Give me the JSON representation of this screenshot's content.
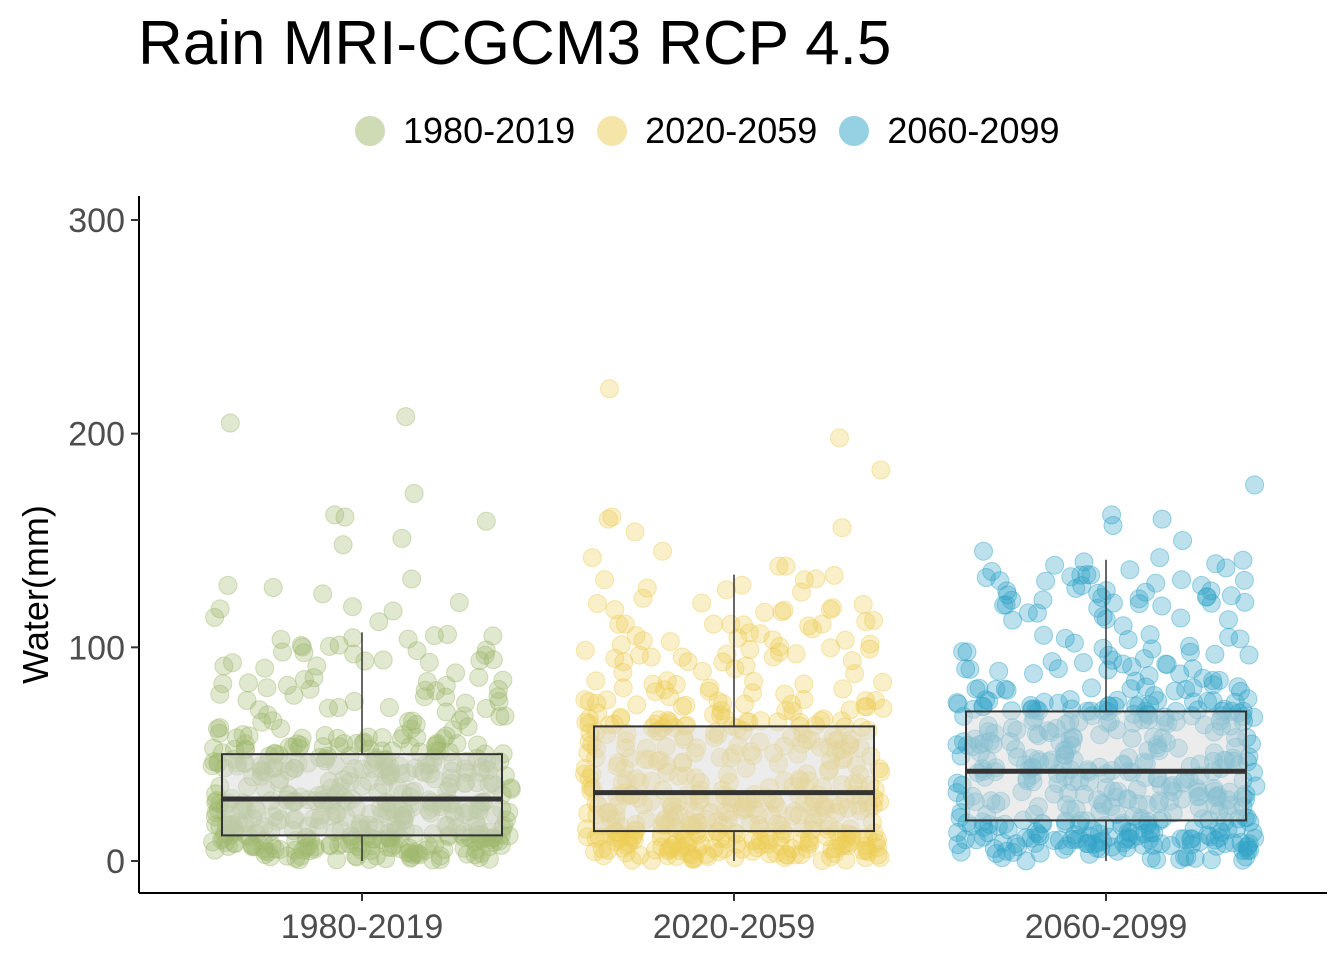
{
  "chart_data": {
    "type": "boxplot with jittered points",
    "title": "Rain MRI-CGCM3 RCP 4.5",
    "xlabel": "",
    "ylabel": "Water(mm)",
    "ylim": [
      -15,
      312
    ],
    "yticks": [
      0,
      100,
      200,
      300
    ],
    "ytick_labels": [
      "0",
      "100",
      "200",
      "300"
    ],
    "categories": [
      "1980-2019",
      "2020-2059",
      "2060-2099"
    ],
    "legend": {
      "position": "top",
      "entries": [
        {
          "label": "1980-2019",
          "color": "#9FB86E"
        },
        {
          "label": "2020-2059",
          "color": "#EDCC55"
        },
        {
          "label": "2060-2099",
          "color": "#2EA3C8"
        }
      ]
    },
    "grid": false,
    "series": [
      {
        "category": "1980-2019",
        "color": "#9FB86E",
        "box": {
          "q1": 12,
          "median": 29,
          "q3": 50,
          "whisker_low": 0,
          "whisker_high": 107
        },
        "point_count": 480,
        "outliers": [
          205,
          208,
          172,
          161,
          162,
          159,
          151,
          148,
          132,
          129,
          128,
          125,
          121,
          119,
          118,
          117,
          114,
          112
        ]
      },
      {
        "category": "2020-2059",
        "color": "#EDCC55",
        "box": {
          "q1": 14,
          "median": 32,
          "q3": 63,
          "whisker_low": 0,
          "whisker_high": 134
        },
        "point_count": 480,
        "outliers": [
          221,
          198,
          183,
          161,
          160,
          156,
          154,
          145,
          142,
          138,
          138
        ]
      },
      {
        "category": "2060-2099",
        "color": "#2EA3C8",
        "box": {
          "q1": 19,
          "median": 42,
          "q3": 70,
          "whisker_low": 0,
          "whisker_high": 141
        },
        "point_count": 480,
        "outliers": [
          176,
          162,
          160,
          157,
          150,
          145,
          142
        ]
      }
    ]
  }
}
